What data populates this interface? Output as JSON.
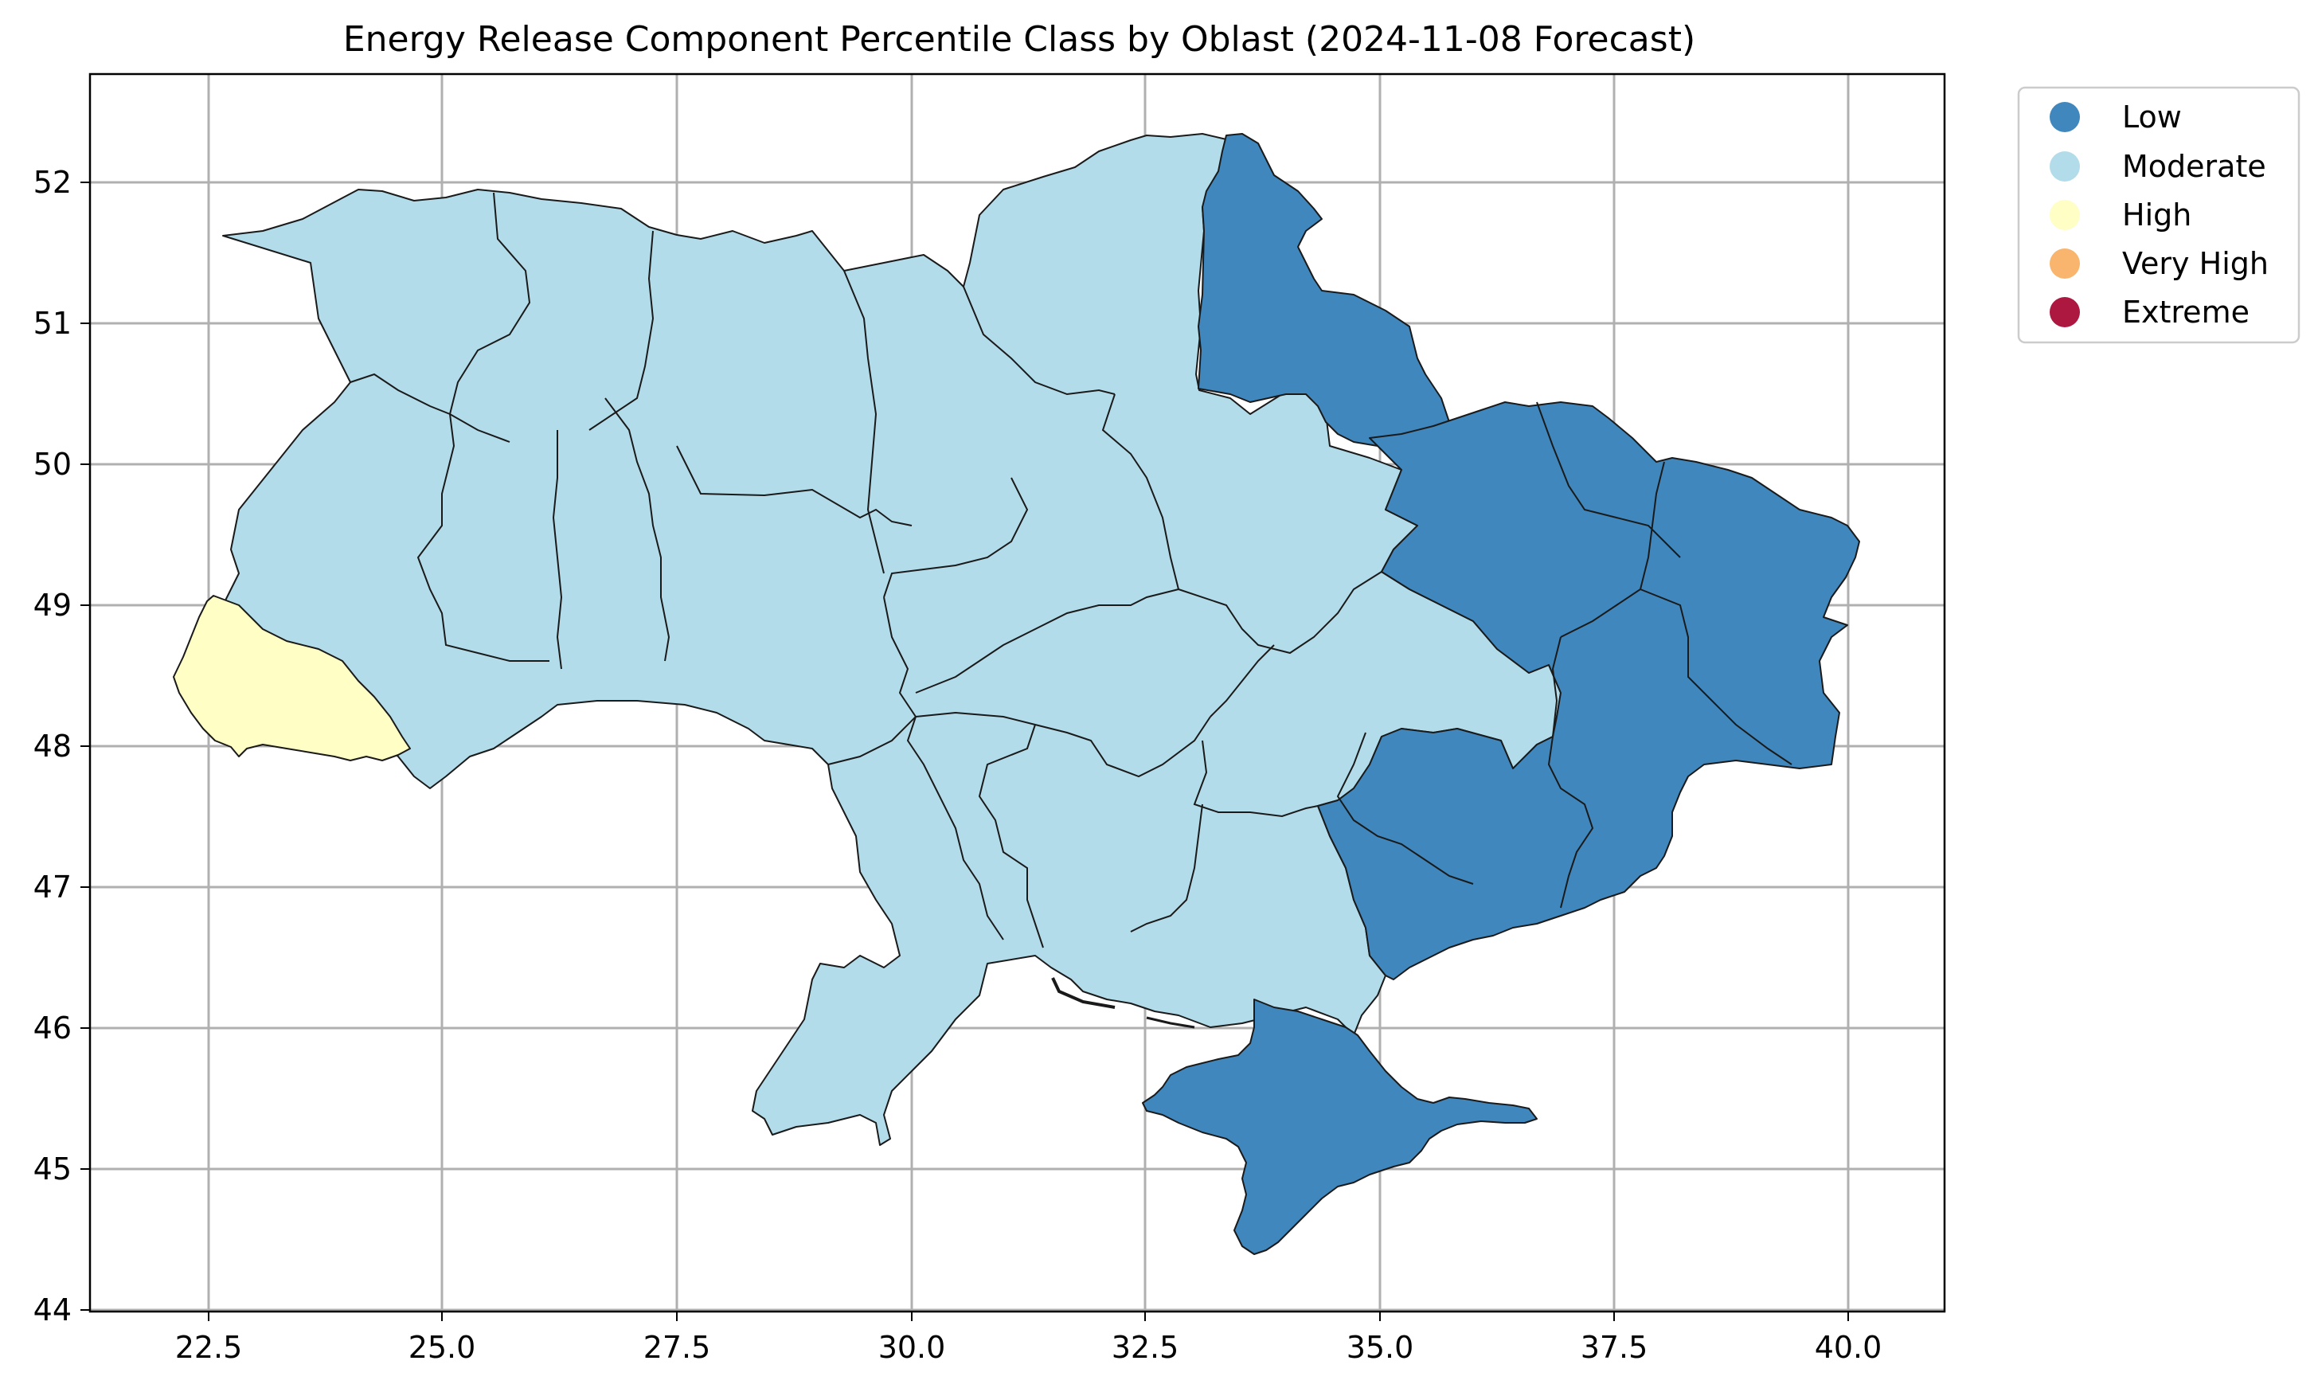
{
  "title": "Energy Release Component Percentile Class by Oblast (2024-11-08 Forecast)",
  "map": {
    "x_ticks": [
      "22.5",
      "25.0",
      "27.5",
      "30.0",
      "32.5",
      "35.0",
      "37.5",
      "40.0"
    ],
    "y_ticks": [
      "52",
      "51",
      "50",
      "49",
      "48",
      "47",
      "46",
      "45",
      "44"
    ],
    "x_range": [
      21.3,
      41.0
    ],
    "y_range": [
      43.95,
      52.8
    ],
    "grid": true
  },
  "legend": {
    "placement": "outside-top-right",
    "items": [
      {
        "label": "Low",
        "color": "#4087bd"
      },
      {
        "label": "Moderate",
        "color": "#b3dcea"
      },
      {
        "label": "High",
        "color": "#fefec5"
      },
      {
        "label": "Very High",
        "color": "#f9b46e"
      },
      {
        "label": "Extreme",
        "color": "#ad1840"
      }
    ]
  },
  "classes_shown": {
    "low_color": "#4087bd",
    "moderate_color": "#b3dcea",
    "high_color": "#fefec5"
  }
}
